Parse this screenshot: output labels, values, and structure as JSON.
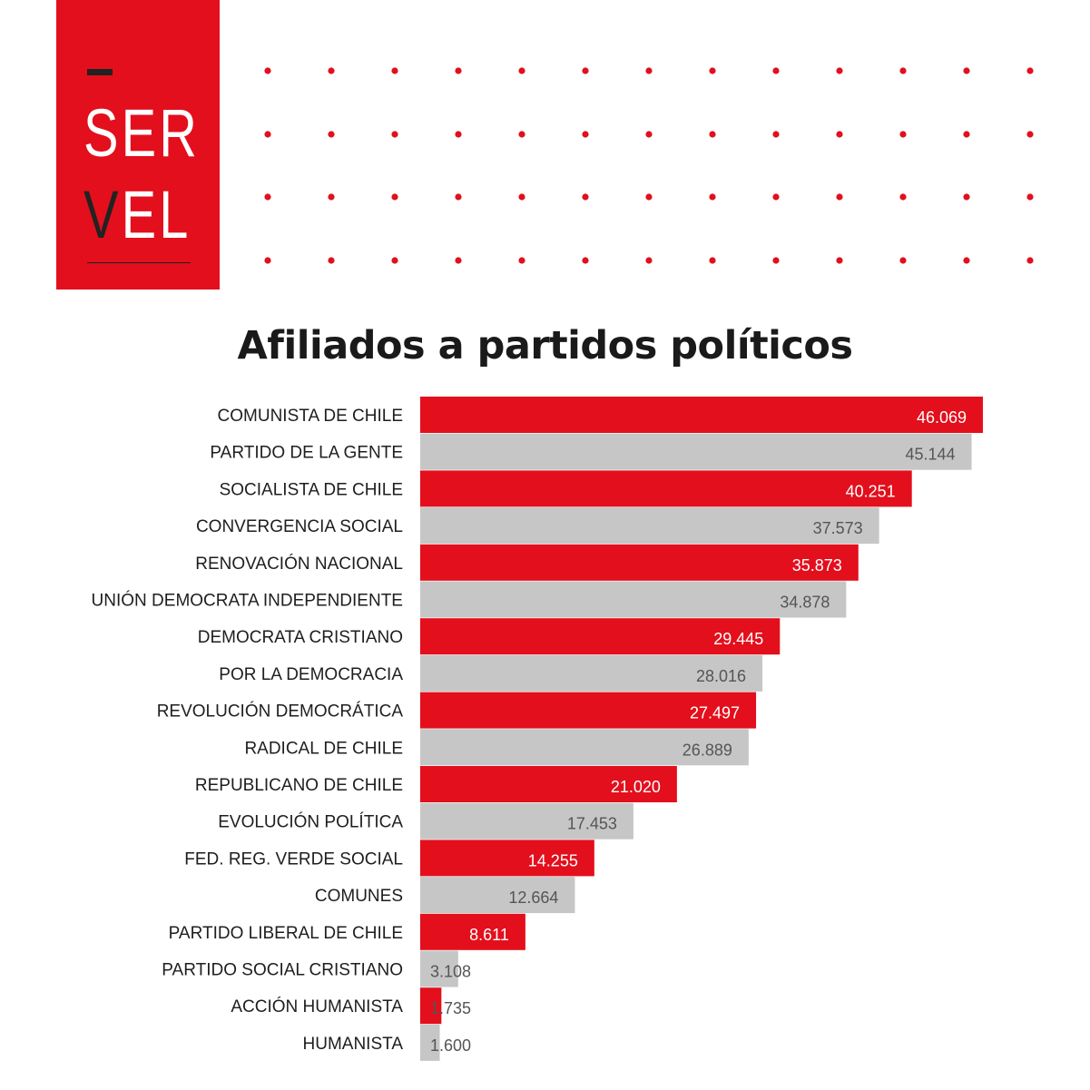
{
  "logo": {
    "line1": "SER",
    "line2_first": "V",
    "line2_rest": "EL"
  },
  "colors": {
    "red": "#e30f1c",
    "gray": "#c6c6c6",
    "dot": "#e30f1c"
  },
  "chart_data": {
    "type": "bar",
    "orientation": "horizontal",
    "title": "Afiliados a partidos políticos",
    "xlim": [
      0,
      46069
    ],
    "categories": [
      "COMUNISTA DE CHILE",
      "PARTIDO DE LA GENTE",
      "SOCIALISTA DE CHILE",
      "CONVERGENCIA SOCIAL",
      "RENOVACIÓN NACIONAL",
      "UNIÓN DEMOCRATA INDEPENDIENTE",
      "DEMOCRATA CRISTIANO",
      "POR LA DEMOCRACIA",
      "REVOLUCIÓN DEMOCRÁTICA",
      "RADICAL DE CHILE",
      "REPUBLICANO DE CHILE",
      "EVOLUCIÓN POLÍTICA",
      "FED. REG. VERDE SOCIAL",
      "COMUNES",
      "PARTIDO LIBERAL DE CHILE",
      "PARTIDO SOCIAL CRISTIANO",
      "ACCIÓN HUMANISTA",
      "HUMANISTA"
    ],
    "values": [
      46069,
      45144,
      40251,
      37573,
      35873,
      34878,
      29445,
      28016,
      27497,
      26889,
      21020,
      17453,
      14255,
      12664,
      8611,
      3108,
      1735,
      1600
    ],
    "value_labels": [
      "46.069",
      "45.144",
      "40.251",
      "37.573",
      "35.873",
      "34.878",
      "29.445",
      "28.016",
      "27.497",
      "26.889",
      "21.020",
      "17.453",
      "14.255",
      "12.664",
      "8.611",
      "3.108",
      "1.735",
      "1.600"
    ],
    "bar_colors": [
      "red",
      "gray",
      "red",
      "gray",
      "red",
      "gray",
      "red",
      "gray",
      "red",
      "gray",
      "red",
      "gray",
      "red",
      "gray",
      "red",
      "gray",
      "red",
      "gray"
    ]
  }
}
